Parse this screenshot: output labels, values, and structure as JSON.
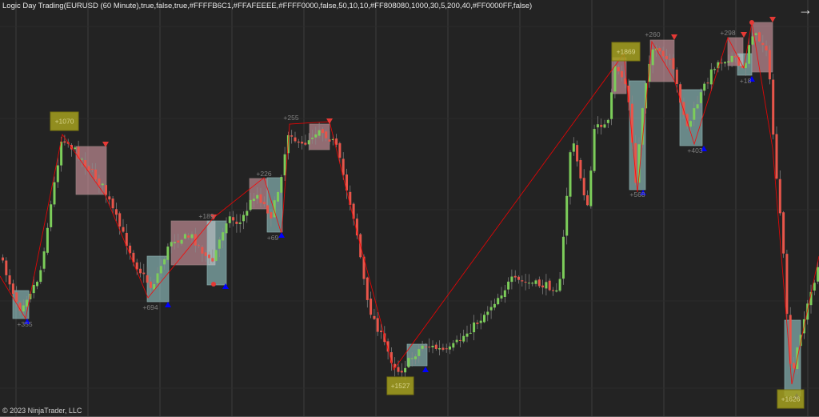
{
  "window": {
    "title": "Logic Day Trading(EURUSD (60 Minute),true,false,true,#FFFFB6C1,#FFAFEEEE,#FFFF0000,false,50,10,10,#FF808080,1000,30,5,200,40,#FF0000FF,false)",
    "copyright": "© 2023 NinjaTrader, LLC",
    "nav_icon": "arrow-right-icon"
  },
  "colors": {
    "background": "#232323",
    "up_candle": "#7ccd5a",
    "down_candle": "#e8554a",
    "short_box": "#FFB6C1",
    "long_box": "#AFEEEE",
    "trade_line": "#FF0000",
    "label": "#808080",
    "long_marker": "#0000FF",
    "total_box": "#a5a01f"
  },
  "trades": {
    "profit_labels": [
      "+355",
      "+694",
      "+189",
      "+226",
      "+69",
      "+255",
      "+260",
      "+568",
      "+403",
      "+298",
      "+18"
    ],
    "total_labels": [
      "+1070",
      "+1527",
      "+1869",
      "+1626"
    ]
  }
}
